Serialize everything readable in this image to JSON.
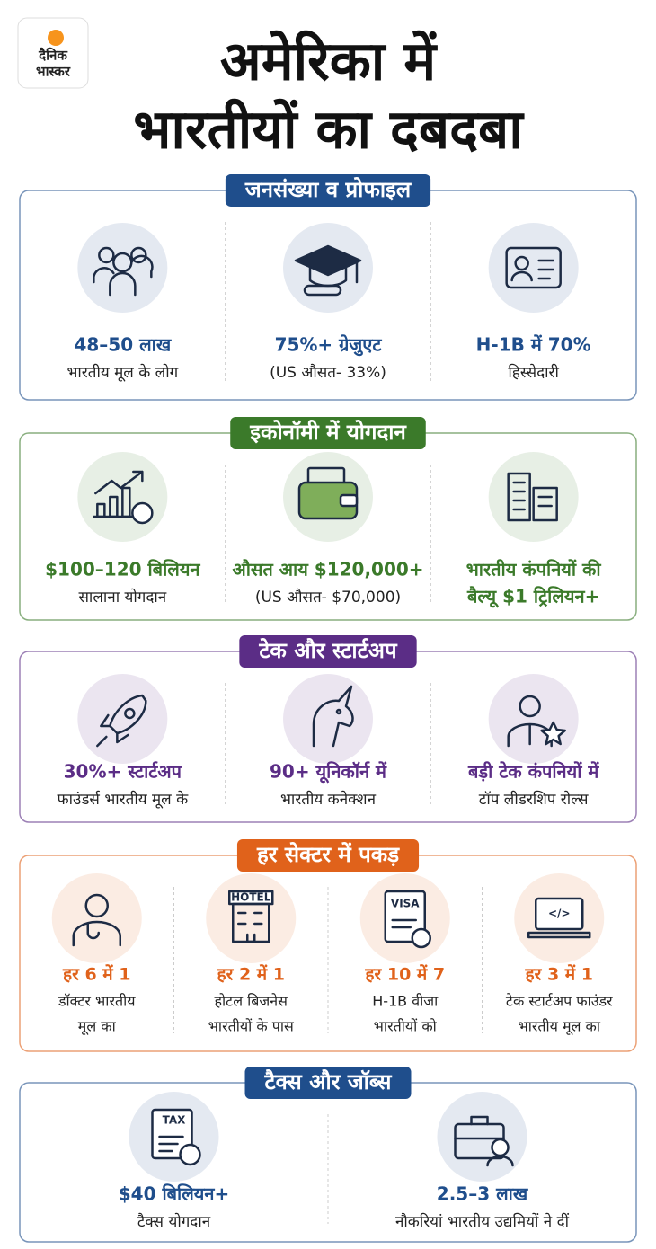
{
  "logo": {
    "line1": "दैनिक",
    "line2": "भास्कर"
  },
  "title": [
    "अमेरिका में",
    "भारतीयों का दबदबा"
  ],
  "sections": [
    {
      "heading": "जनसंख्या व प्रोफाइल",
      "color": "#1f4e8c",
      "items": [
        {
          "headline": [
            "48–50 लाख"
          ],
          "text": [
            "भारतीय मूल के लोग"
          ]
        },
        {
          "headline": [
            "75%+ ग्रेजुएट"
          ],
          "text": [
            "(US औसत- 33%)"
          ]
        },
        {
          "headline": [
            "H-1B में 70%"
          ],
          "text": [
            "हिस्सेदारी"
          ]
        }
      ]
    },
    {
      "heading": "इकोनॉमी में योगदान",
      "color": "#3b7a2a",
      "items": [
        {
          "headline": [
            "$100–120 बिलियन"
          ],
          "text": [
            "सालाना योगदान"
          ]
        },
        {
          "headline": [
            "औसत आय $120,000+"
          ],
          "text": [
            "(US औसत- $70,000)"
          ]
        },
        {
          "headline": [
            "भारतीय कंपनियों की",
            "बैल्यू $1 ट्रिलियन+"
          ]
        }
      ]
    },
    {
      "heading": "टेक और स्टार्टअप",
      "color": "#5b2d86",
      "items": [
        {
          "headline": [
            "30%+ स्टार्टअप"
          ],
          "text": [
            "फाउंडर्स भारतीय मूल के"
          ]
        },
        {
          "headline": [
            "90+ यूनिकॉर्न में"
          ],
          "text": [
            "भारतीय कनेक्शन"
          ]
        },
        {
          "headline": [
            "बड़ी टेक कंपनियों में"
          ],
          "text": [
            "टॉप लीडरशिप रोल्स"
          ]
        }
      ]
    },
    {
      "heading": "हर सेक्टर में पकड़",
      "color": "#e0621b",
      "items": [
        {
          "headline": [
            "हर 6 में 1"
          ],
          "text": [
            "डॉक्टर भारतीय",
            "मूल का"
          ]
        },
        {
          "headline": [
            "हर 2 में 1"
          ],
          "text": [
            "होटल बिजनेस",
            "भारतीयों के पास"
          ],
          "icon_text": "HOTEL"
        },
        {
          "headline": [
            "हर 10 में 7"
          ],
          "text": [
            "H-1B वीजा",
            "भारतीयों को"
          ],
          "icon_text": "VISA"
        },
        {
          "headline": [
            "हर 3 में 1"
          ],
          "text": [
            "टेक स्टार्टअप फाउंडर",
            "भारतीय मूल का"
          ],
          "icon_text": "</>"
        }
      ]
    },
    {
      "heading": "टैक्स और जॉब्स",
      "color": "#1f4e8c",
      "items": [
        {
          "headline": [
            "$40 बिलियन+"
          ],
          "text": [
            "टैक्स योगदान"
          ],
          "icon_text": "TAX"
        },
        {
          "headline": [
            "2.5–3 लाख"
          ],
          "text": [
            "नौकरियां भारतीय उद्यमियों ने दीं"
          ]
        }
      ]
    }
  ]
}
